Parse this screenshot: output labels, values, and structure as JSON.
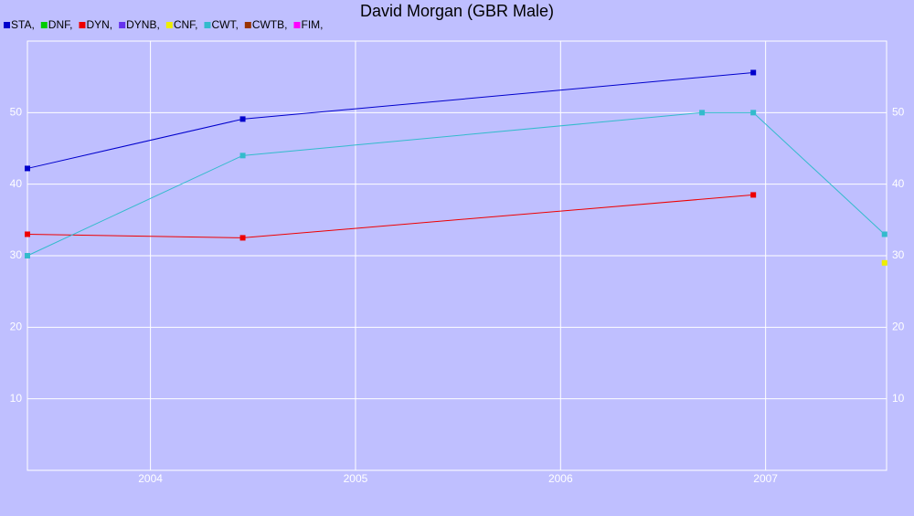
{
  "chart_data": {
    "type": "line",
    "title": "David Morgan (GBR Male)",
    "series": [
      {
        "name": "STA,",
        "color": "#0000cc",
        "x": [
          2003.4,
          2004.45,
          2006.94
        ],
        "values": [
          42.2,
          49.1,
          55.6
        ]
      },
      {
        "name": "DNF,",
        "color": "#00cc00",
        "x": [],
        "values": []
      },
      {
        "name": "DYN,",
        "color": "#ee0000",
        "x": [
          2003.4,
          2004.45,
          2006.94
        ],
        "values": [
          33.0,
          32.5,
          38.5
        ]
      },
      {
        "name": "DYNB,",
        "color": "#6633ee",
        "x": [],
        "values": []
      },
      {
        "name": "CNF,",
        "color": "#eeee00",
        "x": [
          2007.58
        ],
        "values": [
          29.0
        ]
      },
      {
        "name": "CWT,",
        "color": "#33bbcc",
        "x": [
          2003.4,
          2004.45,
          2006.69,
          2006.94,
          2007.58
        ],
        "values": [
          30,
          44,
          50,
          50,
          33
        ]
      },
      {
        "name": "CWTB,",
        "color": "#993300",
        "x": [],
        "values": []
      },
      {
        "name": "FIM,",
        "color": "#ff00ff",
        "x": [],
        "values": []
      }
    ],
    "xlim": [
      2003.4,
      2007.59
    ],
    "xticks": [
      2004,
      2005,
      2006,
      2007
    ],
    "ylim": [
      0,
      60
    ],
    "yticks": [
      10,
      20,
      30,
      40,
      50
    ],
    "grid": true
  }
}
